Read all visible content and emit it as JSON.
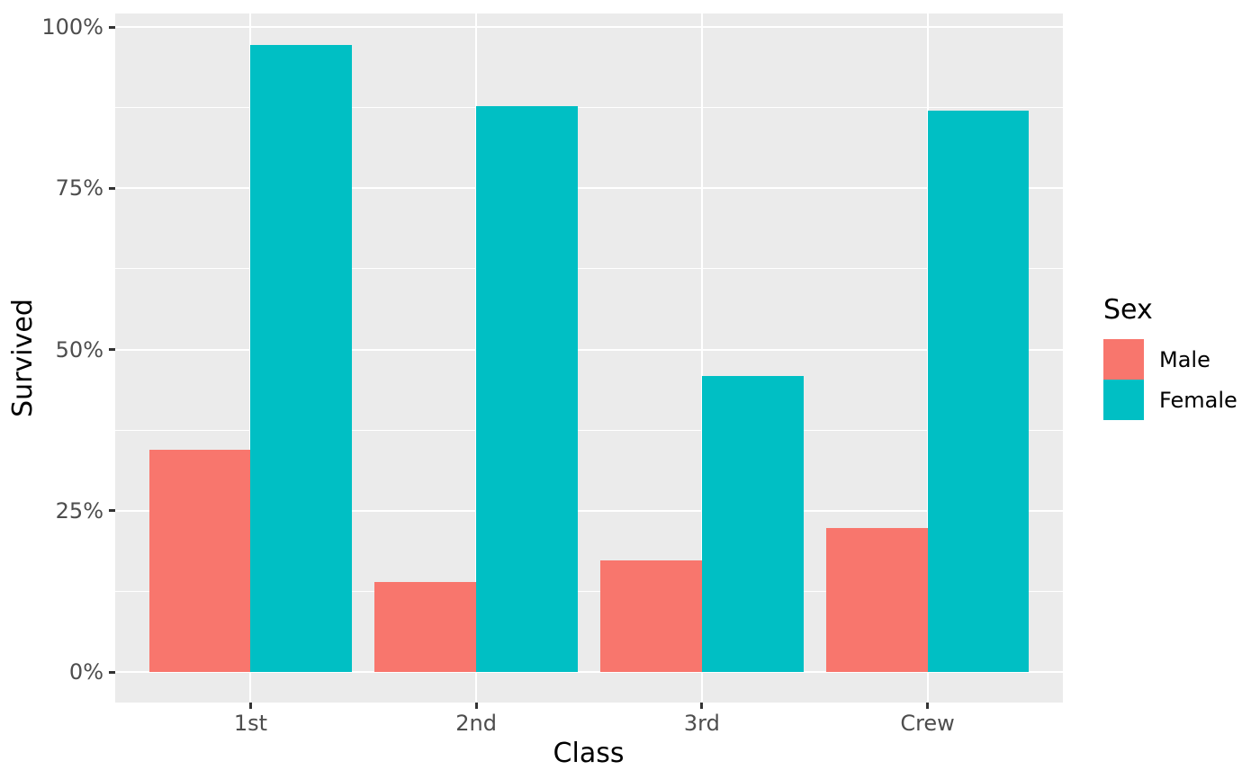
{
  "chart_data": {
    "type": "bar",
    "title": "",
    "xlabel": "Class",
    "ylabel": "Survived",
    "legend_title": "Sex",
    "legend_position": "right",
    "categories": [
      "1st",
      "2nd",
      "3rd",
      "Crew"
    ],
    "series": [
      {
        "name": "Male",
        "color": "#F8766D",
        "values": [
          34.4,
          14.0,
          17.3,
          22.3
        ]
      },
      {
        "name": "Female",
        "color": "#00BFC4",
        "values": [
          97.2,
          87.7,
          45.9,
          87.0
        ]
      }
    ],
    "y_ticks": [
      {
        "value": 0,
        "label": "0%"
      },
      {
        "value": 25,
        "label": "25%"
      },
      {
        "value": 50,
        "label": "50%"
      },
      {
        "value": 75,
        "label": "75%"
      },
      {
        "value": 100,
        "label": "100%"
      }
    ],
    "ylim": [
      0,
      100
    ],
    "unit": "percent",
    "grid": "horizontal major+minor white gridlines, vertical major at category centers",
    "colors": {
      "panel_background": "#EBEBEB",
      "gridline": "#FFFFFF",
      "tick_label_text": "#4D4D4D",
      "axis_title_text": "#000000",
      "tick_mark": "#333333",
      "figure_background": "#FFFFFF"
    }
  }
}
